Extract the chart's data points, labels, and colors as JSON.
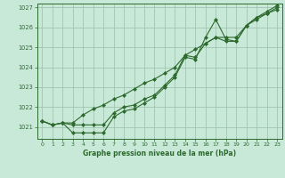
{
  "title": "Graphe pression niveau de la mer (hPa)",
  "background_color": "#c8e8d8",
  "plot_bg_color": "#c8e8d8",
  "grid_color": "#9abfaa",
  "line_color": "#2d6a2d",
  "marker_color": "#2d6a2d",
  "xlim": [
    -0.5,
    23.5
  ],
  "ylim": [
    1020.4,
    1027.2
  ],
  "yticks": [
    1021,
    1022,
    1023,
    1024,
    1025,
    1026,
    1027
  ],
  "xticks": [
    0,
    1,
    2,
    3,
    4,
    5,
    6,
    7,
    8,
    9,
    10,
    11,
    12,
    13,
    14,
    15,
    16,
    17,
    18,
    19,
    20,
    21,
    22,
    23
  ],
  "series1": [
    1021.3,
    1021.1,
    1021.2,
    1021.1,
    1021.1,
    1021.1,
    1021.1,
    1021.7,
    1022.0,
    1022.1,
    1022.4,
    1022.6,
    1023.1,
    1023.6,
    1024.6,
    1024.5,
    1025.2,
    1025.5,
    1025.3,
    1025.3,
    1026.1,
    1026.5,
    1026.7,
    1026.9
  ],
  "series2": [
    1021.3,
    1021.1,
    1021.2,
    1020.7,
    1020.7,
    1020.7,
    1020.7,
    1021.5,
    1021.8,
    1021.9,
    1022.2,
    1022.5,
    1023.0,
    1023.5,
    1024.5,
    1024.4,
    1025.5,
    1026.4,
    1025.4,
    1025.3,
    1026.1,
    1026.5,
    1026.8,
    1027.1
  ],
  "series3": [
    1021.3,
    1021.1,
    1021.2,
    1021.2,
    1021.6,
    1021.9,
    1022.1,
    1022.4,
    1022.6,
    1022.9,
    1023.2,
    1023.4,
    1023.7,
    1024.0,
    1024.6,
    1024.9,
    1025.2,
    1025.5,
    1025.5,
    1025.5,
    1026.1,
    1026.4,
    1026.7,
    1027.0
  ]
}
